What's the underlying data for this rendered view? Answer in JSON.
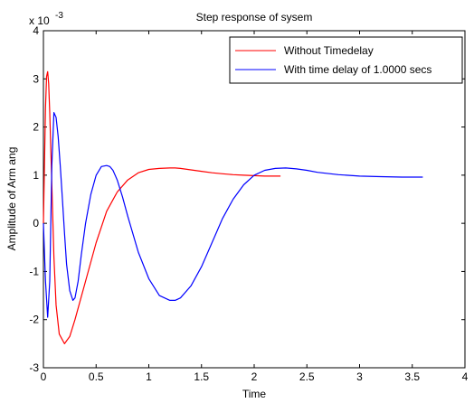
{
  "chart_data": {
    "type": "line",
    "title": "Step response of sysem",
    "xlabel": "Time",
    "ylabel": "Amplitude of Arm ang",
    "y_exponent_label": "x 10",
    "y_exponent_power": "-3",
    "xlim": [
      0,
      4
    ],
    "ylim": [
      -3,
      4
    ],
    "x_ticks": [
      0,
      0.5,
      1,
      1.5,
      2,
      2.5,
      3,
      3.5,
      4
    ],
    "x_tick_labels": [
      "0",
      "0.5",
      "1",
      "1.5",
      "2",
      "2.5",
      "3",
      "3.5",
      "4"
    ],
    "y_ticks": [
      -3,
      -2,
      -1,
      0,
      1,
      2,
      3,
      4
    ],
    "y_tick_labels": [
      "-3",
      "-2",
      "-1",
      "0",
      "1",
      "2",
      "3",
      "4"
    ],
    "grid": false,
    "legend_position": "top-right",
    "series": [
      {
        "name": "Without Timedelay",
        "color": "#ff0000",
        "x": [
          0,
          0.02,
          0.03,
          0.04,
          0.05,
          0.06,
          0.08,
          0.1,
          0.12,
          0.15,
          0.2,
          0.25,
          0.3,
          0.4,
          0.5,
          0.6,
          0.7,
          0.8,
          0.9,
          1.0,
          1.1,
          1.2,
          1.25,
          1.3,
          1.4,
          1.5,
          1.6,
          1.7,
          1.8,
          1.9,
          2.0,
          2.1,
          2.2,
          2.25
        ],
        "y": [
          0,
          2.4,
          3.05,
          3.15,
          2.9,
          2.3,
          0.8,
          -0.7,
          -1.7,
          -2.3,
          -2.5,
          -2.35,
          -2.0,
          -1.2,
          -0.4,
          0.25,
          0.65,
          0.9,
          1.05,
          1.12,
          1.14,
          1.15,
          1.15,
          1.14,
          1.11,
          1.08,
          1.05,
          1.03,
          1.01,
          1.0,
          0.99,
          0.98,
          0.98,
          0.98
        ]
      },
      {
        "name": "With time delay of 1.0000 secs",
        "color": "#0000ff",
        "x": [
          0,
          0.02,
          0.04,
          0.06,
          0.08,
          0.1,
          0.12,
          0.14,
          0.16,
          0.18,
          0.2,
          0.22,
          0.25,
          0.28,
          0.3,
          0.33,
          0.36,
          0.4,
          0.45,
          0.5,
          0.55,
          0.6,
          0.63,
          0.66,
          0.7,
          0.75,
          0.8,
          0.9,
          1.0,
          1.1,
          1.2,
          1.25,
          1.3,
          1.4,
          1.5,
          1.6,
          1.7,
          1.8,
          1.9,
          2.0,
          2.1,
          2.2,
          2.3,
          2.4,
          2.5,
          2.6,
          2.8,
          3.0,
          3.2,
          3.4,
          3.6
        ],
        "y": [
          0,
          -1.2,
          -1.95,
          -1.2,
          1.2,
          2.3,
          2.2,
          1.8,
          1.2,
          0.5,
          -0.2,
          -0.85,
          -1.4,
          -1.6,
          -1.55,
          -1.2,
          -0.65,
          0.0,
          0.6,
          1.0,
          1.18,
          1.2,
          1.18,
          1.1,
          0.9,
          0.55,
          0.15,
          -0.6,
          -1.15,
          -1.5,
          -1.6,
          -1.6,
          -1.55,
          -1.3,
          -0.9,
          -0.4,
          0.1,
          0.5,
          0.8,
          1.0,
          1.1,
          1.14,
          1.15,
          1.13,
          1.1,
          1.06,
          1.01,
          0.98,
          0.97,
          0.96,
          0.96
        ]
      }
    ]
  }
}
